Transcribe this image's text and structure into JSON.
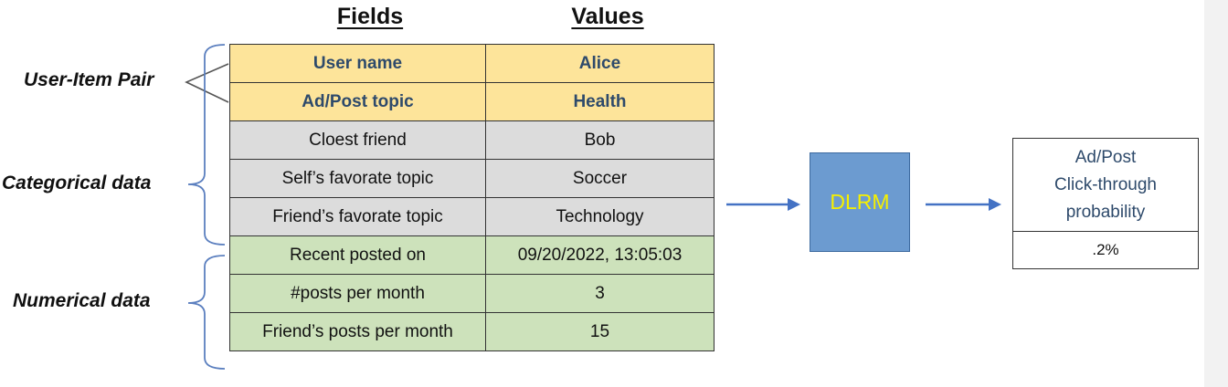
{
  "headers": {
    "fields": "Fields",
    "values": "Values"
  },
  "groups": {
    "pair": "User-Item Pair",
    "categorical": "Categorical data",
    "numerical": "Numerical data"
  },
  "rows": [
    {
      "group": "pair",
      "field": "User name",
      "value": "Alice"
    },
    {
      "group": "pair",
      "field": "Ad/Post topic",
      "value": "Health"
    },
    {
      "group": "categorical",
      "field": "Cloest friend",
      "value": "Bob"
    },
    {
      "group": "categorical",
      "field": "Self’s favorate topic",
      "value": "Soccer"
    },
    {
      "group": "categorical",
      "field": "Friend’s favorate topic",
      "value": "Technology"
    },
    {
      "group": "numerical",
      "field": "Recent posted on",
      "value": "09/20/2022, 13:05:03"
    },
    {
      "group": "numerical",
      "field": "#posts per month",
      "value": "3"
    },
    {
      "group": "numerical",
      "field": "Friend’s posts per month",
      "value": "15"
    }
  ],
  "model": {
    "label": "DLRM"
  },
  "output": {
    "title_lines": [
      "Ad/Post",
      "Click-through",
      "probability"
    ],
    "value": ".2%"
  },
  "colors": {
    "pair_fill": "#fde49a",
    "categorical_fill": "#dcdcdc",
    "numerical_fill": "#cde2bb",
    "model_fill": "#6c9bd0",
    "model_text": "#f6f000",
    "arrow": "#4472c4",
    "bracket": "#5b7fbf"
  }
}
